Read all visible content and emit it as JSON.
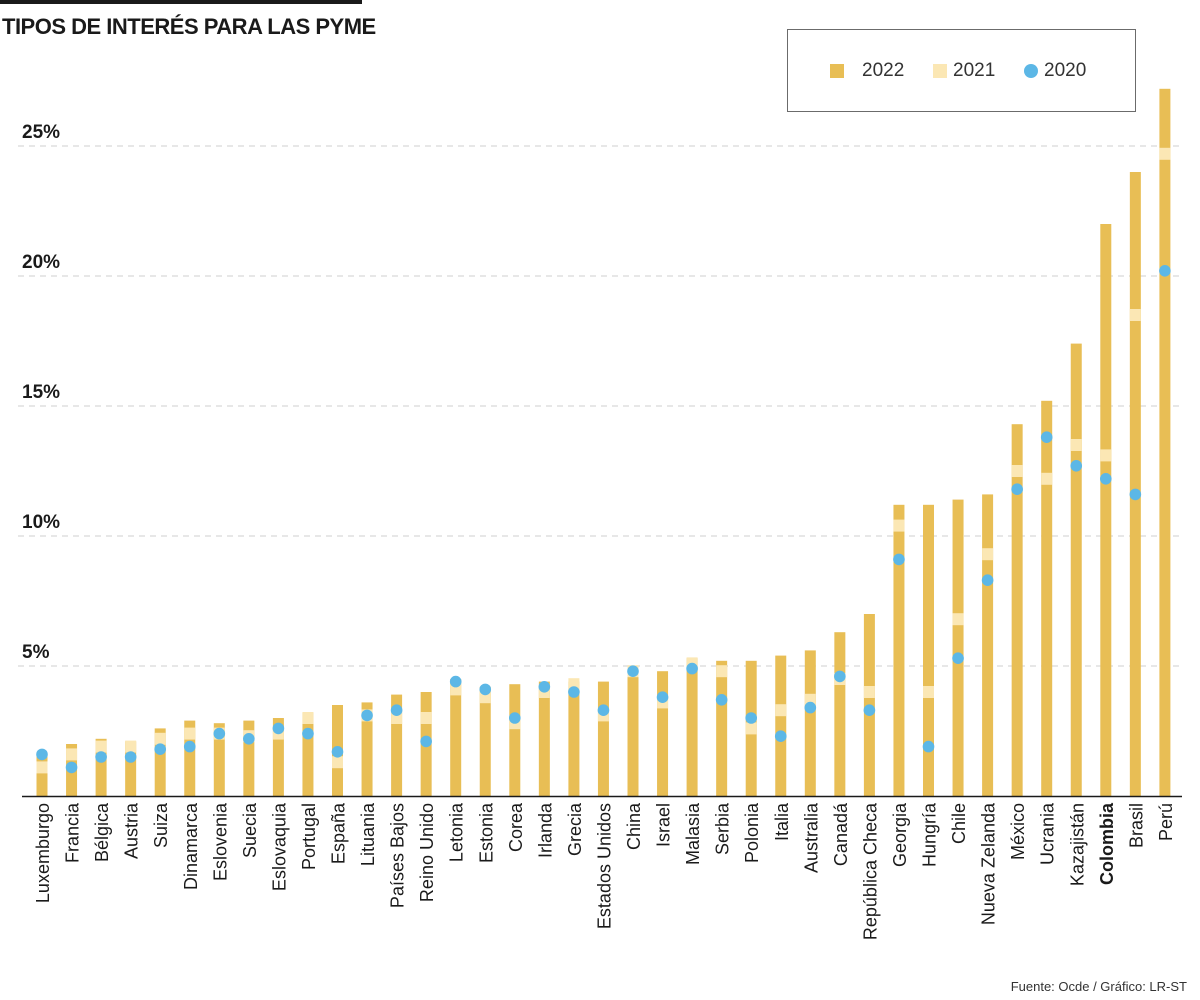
{
  "title": "TIPOS DE INTERÉS PARA LAS PYME",
  "source": "Fuente: Ocde / Gráfico: LR-ST",
  "colors": {
    "y2022": "#e8be55",
    "y2021": "#fbe7b4",
    "y2020": "#5cb7e6",
    "grid": "#cfcfcf",
    "axis": "#1a1a1a"
  },
  "legend": [
    {
      "label": "2022",
      "kind": "bar",
      "series": "2022"
    },
    {
      "label": "2021",
      "kind": "bar",
      "series": "2021"
    },
    {
      "label": "2020",
      "kind": "dot",
      "series": "2020"
    }
  ],
  "chart_data": {
    "type": "bar",
    "title": "TIPOS DE INTERÉS PARA LAS PYME",
    "xlabel": "",
    "ylabel": "",
    "ylim": [
      0,
      27.5
    ],
    "yticks": [
      5,
      10,
      15,
      20,
      25
    ],
    "ytick_labels": [
      "5%",
      "10%",
      "15%",
      "20%",
      "25%"
    ],
    "grid": true,
    "legend_position": "top-right",
    "highlight_category": "Colombia",
    "categories": [
      "Luxemburgo",
      "Francia",
      "Bélgica",
      "Austria",
      "Suiza",
      "Dinamarca",
      "Eslovenia",
      "Suecia",
      "Eslovaquia",
      "Portugal",
      "España",
      "Lituania",
      "Países Bajos",
      "Reino Unido",
      "Letonia",
      "Estonia",
      "Corea",
      "Irlanda",
      "Grecia",
      "Estados Unidos",
      "China",
      "Israel",
      "Malasia",
      "Serbia",
      "Polonia",
      "Italia",
      "Australia",
      "Canadá",
      "República Checa",
      "Georgia",
      "Hungría",
      "Chile",
      "Nueva Zelanda",
      "México",
      "Ucrania",
      "Kazajistán",
      "Colombia",
      "Brasil",
      "Perú"
    ],
    "series": [
      {
        "name": "2022",
        "values": [
          1.6,
          2.0,
          2.2,
          2.1,
          2.6,
          2.9,
          2.8,
          2.9,
          3.0,
          3.2,
          3.5,
          3.6,
          3.9,
          4.0,
          4.5,
          4.2,
          4.3,
          4.4,
          4.4,
          4.4,
          5.0,
          4.8,
          5.3,
          5.2,
          5.2,
          5.4,
          5.6,
          6.3,
          7.0,
          11.2,
          11.2,
          11.4,
          11.6,
          14.3,
          15.2,
          17.4,
          22.0,
          24.0,
          27.2
        ]
      },
      {
        "name": "2021",
        "values": [
          1.1,
          1.6,
          1.9,
          1.9,
          2.2,
          2.4,
          2.4,
          2.3,
          2.4,
          3.0,
          1.3,
          3.1,
          3.0,
          3.0,
          4.1,
          3.8,
          2.8,
          4.0,
          4.3,
          3.1,
          4.8,
          3.6,
          5.1,
          4.8,
          2.6,
          3.3,
          3.7,
          4.5,
          4.0,
          10.4,
          4.0,
          6.8,
          9.3,
          12.5,
          12.2,
          13.5,
          13.1,
          18.5,
          24.7
        ]
      },
      {
        "name": "2020",
        "values": [
          1.6,
          1.1,
          1.5,
          1.5,
          1.8,
          1.9,
          2.4,
          2.2,
          2.6,
          2.4,
          1.7,
          3.1,
          3.3,
          2.1,
          4.4,
          4.1,
          3.0,
          4.2,
          4.0,
          3.3,
          4.8,
          3.8,
          4.9,
          3.7,
          3.0,
          2.3,
          3.4,
          4.6,
          3.3,
          9.1,
          1.9,
          5.3,
          8.3,
          11.8,
          13.8,
          12.7,
          12.2,
          11.6,
          20.2
        ]
      }
    ]
  }
}
